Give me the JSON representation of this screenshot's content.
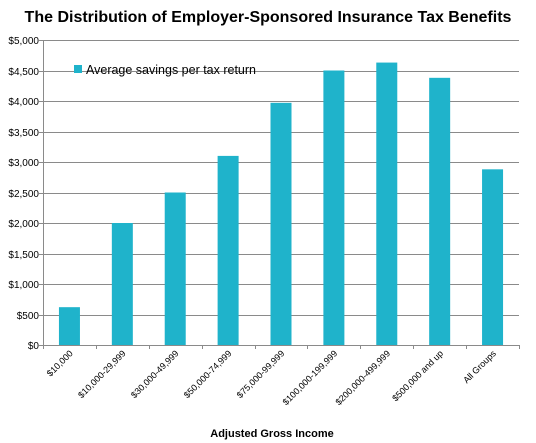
{
  "chart_data": {
    "type": "bar",
    "title": "The Distribution of Employer-Sponsored Insurance Tax Benefits",
    "xlabel": "Adjusted Gross Income",
    "ylabel": "",
    "categories": [
      "$10,000",
      "$10,000-29,999",
      "$30,000-49,999",
      "$50,000-74,999",
      "$75,000-99,999",
      "$100,000-199,999",
      "$200,000-499,999",
      "$500,000 and up",
      "All Groups"
    ],
    "series": [
      {
        "name": "Average savings per tax return",
        "color": "#1FB3CB",
        "values": [
          620,
          2000,
          2500,
          3100,
          3970,
          4500,
          4630,
          4380,
          2880
        ]
      }
    ],
    "ylim": [
      0,
      5000
    ],
    "yticks": [
      0,
      500,
      1000,
      1500,
      2000,
      2500,
      3000,
      3500,
      4000,
      4500,
      5000
    ],
    "ytick_labels": [
      "$0",
      "$500",
      "$1,000",
      "$1,500",
      "$2,000",
      "$2,500",
      "$3,000",
      "$3,500",
      "$4,000",
      "$4,500",
      "$5,000"
    ],
    "grid": true,
    "legend_position": "top-left"
  }
}
